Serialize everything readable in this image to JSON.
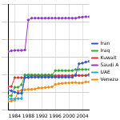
{
  "chart_data": {
    "type": "line",
    "x": [
      1982,
      1983,
      1984,
      1985,
      1986,
      1987,
      1988,
      1989,
      1990,
      1991,
      1992,
      1993,
      1994,
      1995,
      1996,
      1997,
      1998,
      1999,
      2000,
      2001,
      2002,
      2003,
      2004,
      2005,
      2006
    ],
    "series": [
      {
        "name": "Iran",
        "color": "#3355cc",
        "values": [
          57,
          55,
          51,
          48,
          48,
          93,
          93,
          93,
          93,
          93,
          93,
          93,
          93,
          93,
          93,
          93,
          93,
          93,
          93,
          93,
          100,
          131,
          133,
          136,
          138
        ]
      },
      {
        "name": "Iraq",
        "color": "#33aa33",
        "values": [
          41,
          41,
          65,
          65,
          72,
          100,
          100,
          100,
          100,
          100,
          100,
          100,
          100,
          100,
          112,
          112,
          112,
          112,
          112,
          112,
          115,
          115,
          115,
          115,
          115
        ]
      },
      {
        "name": "Kuwait",
        "color": "#dd3333",
        "values": [
          67,
          67,
          92,
          92,
          92,
          92,
          92,
          97,
          97,
          96.5,
          96.5,
          96.5,
          96.5,
          96.5,
          96.5,
          96.5,
          96.5,
          96.5,
          96.5,
          98,
          98,
          98,
          98,
          98,
          101.5
        ]
      },
      {
        "name": "Saudi Arabia",
        "color": "#9933cc",
        "values": [
          165,
          168,
          169,
          169,
          169,
          170,
          255,
          260,
          260,
          260,
          260,
          260,
          260,
          260,
          260,
          260,
          260,
          260,
          260,
          260,
          260,
          262,
          263,
          264,
          264
        ]
      },
      {
        "name": "UAE",
        "color": "#22aadd",
        "values": [
          32,
          32,
          32,
          33,
          33,
          98,
          98,
          98,
          98,
          98,
          98,
          98,
          98,
          98,
          98,
          98,
          98,
          98,
          98,
          98,
          98,
          98,
          98,
          98,
          98
        ]
      },
      {
        "name": "Venezuela",
        "color": "#ff8800",
        "values": [
          25,
          26,
          28,
          54,
          56,
          58,
          59,
          59,
          60,
          63,
          63,
          64,
          65,
          66,
          73,
          75,
          76,
          77,
          77,
          78,
          78,
          77,
          77,
          80,
          80
        ]
      }
    ],
    "xlim": [
      1982,
      2006
    ],
    "xticks": [
      1984,
      1988,
      1992,
      1996,
      2000,
      2004
    ],
    "ylim": [
      0,
      300
    ],
    "yticks": [
      0,
      50,
      100,
      150,
      200,
      250,
      300
    ],
    "grid": true,
    "legend": "right",
    "tick_labels": "x",
    "marker": "circle",
    "line_style": "solid"
  }
}
